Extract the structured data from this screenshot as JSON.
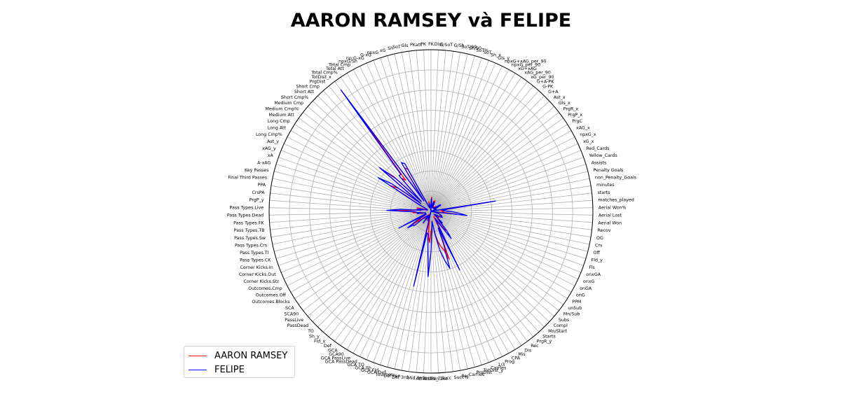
{
  "chart_data": {
    "type": "radar",
    "title": "AARON RAMSEY và FELIPE",
    "legend_position": "lower-left",
    "grid": true,
    "categories": [
      "FK",
      "Dist",
      "G/SoT",
      "G/Sh",
      "SoT/90",
      "Sh/90",
      "SoT%",
      "SoT",
      "Sh_x",
      "Gls_y",
      "npxG+xAG_per_90",
      "npxG_per_90",
      "xG+xAG",
      "xAG_per_90",
      "xG_per_90",
      "G+A-PK",
      "G-PK",
      "G+A",
      "Ast_x",
      "Gls_x",
      "PrgR_x",
      "PrgP_x",
      "PrgC",
      "xAG_x",
      "npxG_x",
      "xG_x",
      "Red_Cards",
      "Yellow_Cards",
      "Assists",
      "Penalty Goals",
      "non_Penalty_Goals",
      "minutes",
      "starts",
      "matches_played",
      "Aerial Won%",
      "Aerial Lost",
      "Aerial Won",
      "Recov",
      "OG",
      "Crs",
      "Off",
      "Fld_y",
      "Fls",
      "onxGA",
      "onxG",
      "onGA",
      "onG",
      "PPM",
      "unSub",
      "Mn/Sub",
      "Subs",
      "Compl",
      "Mn/Start",
      "Starts",
      "PrgR_y",
      "Rec",
      "Dis",
      "Mis",
      "CPA",
      "Prog",
      "1/3",
      "Carries",
      "TotDist_y",
      "PrgDist",
      "Carries",
      "Rec",
      "Succ%",
      "Succ",
      "Att_Take",
      "Att Pen",
      "Att 3rd",
      "Mid 3rd",
      "Def 3rd",
      "Def Pen",
      "Touches",
      "GCA Def",
      "GCA Fld",
      "GCA Sh",
      "GCA TO",
      "GCA PassDead",
      "GCA PassLive",
      "GCA90",
      "GCA",
      "Def",
      "Fld_x",
      "Sh_y",
      "TO",
      "PassDead",
      "PassLive",
      "SCA90",
      "SCA",
      "Outcomes.Blocks",
      "Outcomes.Off",
      "Outcomes.Cmp",
      "Corner Kicks.Str",
      "Corner Kicks.Out",
      "Corner Kicks.In",
      "Pass Types.CK",
      "Pass Types.TI",
      "Pass Types.Crs",
      "Pass Types.Sw",
      "Pass Types.TB",
      "Pass Types.FK",
      "Pass Types.Dead",
      "Pass Types.Live",
      "PrgP_y",
      "CrsPA",
      "PPA",
      "Final Third Passes",
      "Key Passes",
      "A-xAG",
      "xA",
      "xAG_y",
      "Ast_y",
      "Long Cmp%",
      "Long Att",
      "Long Cmp",
      "Medium Att",
      "Medium Cmp%",
      "Medium Cmp",
      "Short Cmp%",
      "Short Att",
      "Short Cmp",
      "PrgDist",
      "TotDist_x",
      "Total Cmp%",
      "Total Att",
      "Total Cmp",
      "npxG/Sh",
      "np:G-xG",
      "G-xG",
      "npxG",
      "xG",
      "Sh",
      "SoT",
      "Gls",
      "PKatt",
      "PK"
    ],
    "rlim": [
      0,
      8000
    ],
    "series": [
      {
        "name": "AARON RAMSEY",
        "color": "#ff0000",
        "values": [
          30,
          60,
          10,
          5,
          10,
          20,
          35,
          15,
          40,
          5,
          5,
          5,
          8,
          5,
          5,
          10,
          10,
          15,
          5,
          10,
          20,
          30,
          25,
          5,
          5,
          5,
          0,
          5,
          5,
          0,
          5,
          1100,
          30,
          35,
          50,
          40,
          40,
          200,
          0,
          20,
          5,
          20,
          30,
          30,
          35,
          30,
          30,
          20,
          10,
          30,
          10,
          5,
          70,
          30,
          150,
          180,
          40,
          60,
          10,
          150,
          120,
          800,
          500,
          400,
          300,
          180,
          60,
          50,
          80,
          120,
          300,
          200,
          80,
          20,
          800,
          0,
          10,
          20,
          5,
          5,
          30,
          10,
          40,
          5,
          20,
          10,
          30,
          15,
          50,
          60,
          150,
          20,
          10,
          300,
          10,
          10,
          10,
          10,
          10,
          30,
          20,
          30,
          100,
          100,
          500,
          100,
          60,
          30,
          40,
          60,
          10,
          10,
          15,
          5,
          10,
          60,
          700,
          500,
          60,
          1300,
          800,
          60,
          600,
          500,
          5000,
          60,
          800,
          700,
          20,
          5,
          5,
          10,
          10,
          30,
          10,
          5,
          0,
          0
        ]
      },
      {
        "name": "FELIPE",
        "color": "#0000ff",
        "values": [
          20,
          50,
          10,
          5,
          10,
          15,
          30,
          10,
          30,
          5,
          5,
          5,
          5,
          5,
          5,
          5,
          5,
          10,
          5,
          5,
          30,
          40,
          40,
          5,
          5,
          5,
          0,
          10,
          5,
          0,
          5,
          1300,
          40,
          45,
          70,
          150,
          250,
          400,
          0,
          10,
          5,
          20,
          30,
          40,
          40,
          50,
          40,
          20,
          10,
          20,
          10,
          5,
          80,
          40,
          200,
          350,
          70,
          20,
          40,
          1300,
          100,
          400,
          1100,
          800,
          500,
          200,
          60,
          30,
          120,
          500,
          1300,
          350,
          150,
          150,
          1800,
          0,
          30,
          20,
          20,
          5,
          10,
          10,
          60,
          10,
          10,
          10,
          20,
          20,
          150,
          150,
          250,
          80,
          10,
          400,
          10,
          10,
          10,
          10,
          10,
          20,
          60,
          30,
          60,
          80,
          600,
          300,
          30,
          60,
          20,
          40,
          5,
          5,
          10,
          5,
          5,
          80,
          1200,
          700,
          50,
          1400,
          700,
          60,
          700,
          700,
          7000,
          50,
          1000,
          900,
          20,
          5,
          5,
          5,
          5,
          20,
          5,
          5,
          0,
          0
        ]
      }
    ]
  }
}
